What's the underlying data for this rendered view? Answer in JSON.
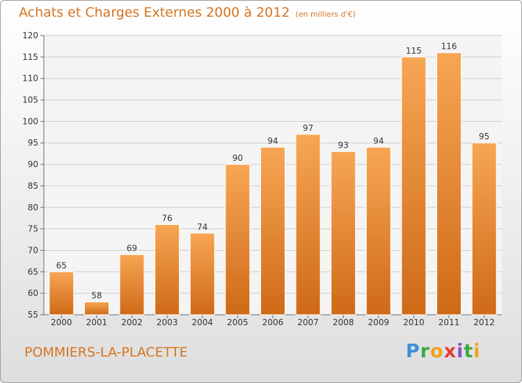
{
  "header": {
    "title": "Achats et Charges Externes 2000 à 2012",
    "unit": "(en milliers d'€)"
  },
  "footer": {
    "place": "POMMIERS-LA-PLACETTE",
    "logo": "Proxiti"
  },
  "colors": {
    "accent": "#d4741f",
    "bar_top": "#f7a654",
    "bar_bottom": "#cf6a17"
  },
  "chart_data": {
    "type": "bar",
    "title": "Achats et Charges Externes 2000 à 2012",
    "subtitle": "(en milliers d'€)",
    "xlabel": "",
    "ylabel": "",
    "categories": [
      "2000",
      "2001",
      "2002",
      "2003",
      "2004",
      "2005",
      "2006",
      "2007",
      "2008",
      "2009",
      "2010",
      "2011",
      "2012"
    ],
    "values": [
      65,
      58,
      69,
      76,
      74,
      90,
      94,
      97,
      93,
      94,
      115,
      116,
      95
    ],
    "ylim": [
      55,
      120
    ],
    "yticks": [
      55,
      60,
      65,
      70,
      75,
      80,
      85,
      90,
      95,
      100,
      105,
      110,
      115,
      120
    ],
    "grid": true,
    "legend": "none"
  }
}
